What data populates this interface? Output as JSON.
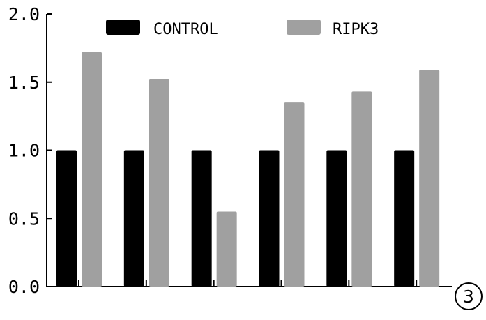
{
  "chart_data": {
    "type": "bar",
    "categories": [
      "",
      "",
      "",
      "",
      "",
      ""
    ],
    "series": [
      {
        "name": "CONTROL",
        "color": "#000000",
        "values": [
          1.0,
          1.0,
          1.0,
          1.0,
          1.0,
          1.0
        ]
      },
      {
        "name": "RIPK3",
        "color": "#a0a0a0",
        "values": [
          1.72,
          1.52,
          0.55,
          1.35,
          1.43,
          1.59
        ]
      }
    ],
    "ylim": [
      0,
      2.0
    ],
    "yticks": [
      "0.0",
      "0.5",
      "1.0",
      "1.5",
      "2.0"
    ],
    "ytick_values": [
      0,
      0.5,
      1.0,
      1.5,
      2.0
    ],
    "grid": false,
    "legend_position": "top",
    "panel_label": "3"
  }
}
